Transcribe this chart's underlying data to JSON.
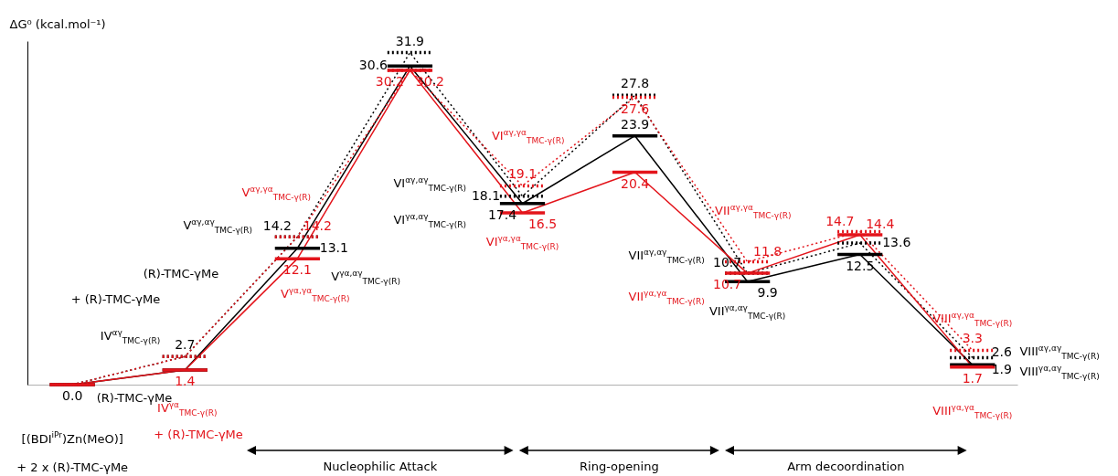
{
  "chart_data": {
    "type": "line",
    "ylabel": "ΔG⁰ (kcal.mol⁻¹)",
    "categories": [
      null,
      null,
      null,
      null,
      null,
      null,
      null,
      null,
      null
    ],
    "ylim": [
      0,
      33
    ],
    "series": [
      {
        "color": "#000000",
        "line_style": "dotted",
        "values": [
          0.0,
          2.7,
          14.2,
          31.9,
          18.1,
          27.8,
          10.7,
          13.6,
          2.6
        ],
        "value_labels": [
          "0.0",
          "2.7",
          "14.2",
          "31.9",
          "18.1",
          "27.8",
          "10.7",
          "13.6",
          "2.6"
        ]
      },
      {
        "color": "#000000",
        "line_style": "solid",
        "values": [
          0.0,
          1.4,
          13.1,
          30.6,
          17.4,
          23.9,
          9.9,
          12.5,
          1.9
        ],
        "value_labels": [
          null,
          null,
          "13.1",
          "30.6",
          "17.4",
          "23.9",
          "9.9",
          "12.5",
          "1.9"
        ]
      },
      {
        "color": "#e3141b",
        "line_style": "dotted",
        "values": [
          0.0,
          2.7,
          14.2,
          30.2,
          19.1,
          27.6,
          11.8,
          14.7,
          3.3
        ],
        "value_labels": [
          null,
          null,
          "14.2",
          "30.2",
          "19.1",
          "27.6",
          "11.8",
          "14.7",
          "3.3"
        ]
      },
      {
        "color": "#e3141b",
        "line_style": "solid",
        "values": [
          0.0,
          1.4,
          12.1,
          30.2,
          16.5,
          20.4,
          10.7,
          14.4,
          1.7
        ],
        "value_labels": [
          null,
          "1.4",
          "12.1",
          "30.2",
          "16.5",
          "20.4",
          "10.7",
          "14.4",
          "1.7"
        ]
      }
    ],
    "annotations": [
      "IV$^{αγ}$$_{TMC-γ(R)}$",
      "+ (R)-TMC-γMe",
      "IV$^{γα}$$_{TMC-γ(R)}$",
      "+ (R)-TMC-γMe",
      "(R)-TMC-γMe",
      "(R)-TMC-γMe",
      "[(BDI$^{iPr}$)Zn(MeO)]",
      "+ 2 x (R)-TMC-γMe",
      "V$^{αγ,αγ}$$_{TMC-γ(R)}$",
      "V$^{αγ,γα}$$_{TMC-γ(R)}$",
      "V$^{γα,αγ}$$_{TMC-γ(R)}$",
      "V$^{γα,γα}$$_{TMC-γ(R)}$",
      "VI$^{αγ,αγ}$$_{TMC-γ(R)}$",
      "VI$^{γα,αγ}$$_{TMC-γ(R)}$",
      "VI$^{αγ,γα}$$_{TMC-γ(R)}$",
      "VI$^{γα,γα}$$_{TMC-γ(R)}$",
      "VII$^{αγ,αγ}$$_{TMC-γ(R)}$",
      "VII$^{αγ,γα}$$_{TMC-γ(R)}$",
      "VII$^{γα,γα}$$_{TMC-γ(R)}$",
      "VII$^{γα,αγ}$$_{TMC-γ(R)}$",
      "VIII$^{αγ,γα}$$_{TMC-γ(R)}$",
      "VIII$^{αγ,αγ}$$_{TMC-γ(R)}$",
      "VIII$^{γα,αγ}$$_{TMC-γ(R)}$",
      "VIII$^{γα,γα}$$_{TMC-γ(R)}$",
      "Nucleophilic Attack",
      "Ring-opening",
      "Arm decoordination"
    ]
  }
}
